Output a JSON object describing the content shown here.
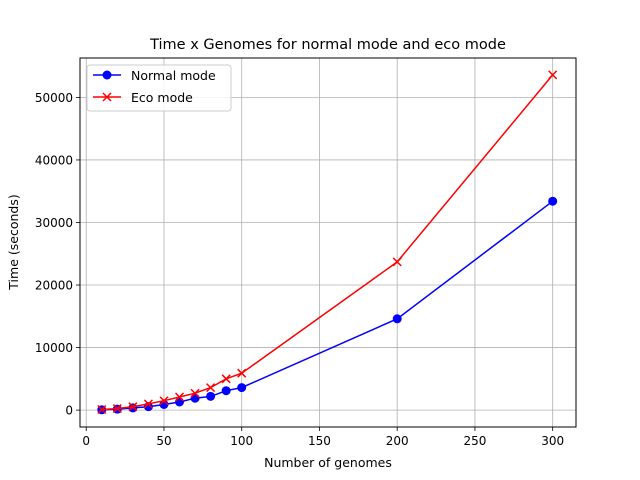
{
  "chart_data": {
    "type": "line",
    "title": "Time x Genomes for normal mode and eco mode",
    "xlabel": "Number of genomes",
    "ylabel": "Time (seconds)",
    "xlim": [
      -4,
      315
    ],
    "ylim": [
      -2700,
      56300
    ],
    "xticks": [
      0,
      50,
      100,
      150,
      200,
      250,
      300
    ],
    "yticks": [
      0,
      10000,
      20000,
      30000,
      40000,
      50000
    ],
    "grid": true,
    "legend_position": "top-left",
    "series": [
      {
        "name": "Normal mode",
        "color": "#0000ff",
        "marker": "circle",
        "x": [
          10,
          20,
          30,
          40,
          50,
          60,
          70,
          80,
          90,
          100,
          200,
          300
        ],
        "y": [
          50,
          150,
          350,
          550,
          900,
          1300,
          1900,
          2200,
          3100,
          3600,
          14600,
          33400
        ]
      },
      {
        "name": "Eco mode",
        "color": "#ff0000",
        "marker": "x",
        "x": [
          10,
          20,
          30,
          40,
          50,
          60,
          70,
          80,
          90,
          100,
          200,
          300
        ],
        "y": [
          100,
          250,
          550,
          1000,
          1500,
          2100,
          2700,
          3600,
          5000,
          5900,
          23700,
          53600
        ]
      }
    ]
  }
}
